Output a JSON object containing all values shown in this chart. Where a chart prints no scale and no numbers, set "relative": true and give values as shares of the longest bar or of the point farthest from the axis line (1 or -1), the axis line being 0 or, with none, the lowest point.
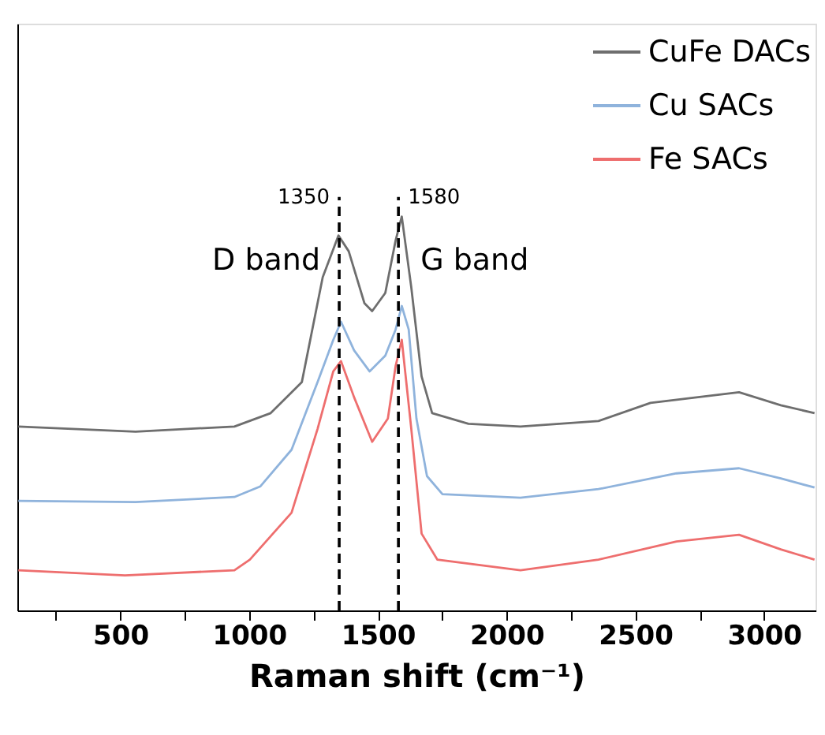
{
  "chart_data": {
    "type": "line",
    "relative": true,
    "xlabel": "Raman shift (cm⁻¹)",
    "xlim": [
      100,
      3200
    ],
    "xticks": [
      {
        "value": 250,
        "label": null
      },
      500,
      {
        "value": 750,
        "label": null
      },
      1000,
      {
        "value": 1250,
        "label": null
      },
      1500,
      {
        "value": 1750,
        "label": null
      },
      2000,
      {
        "value": 2250,
        "label": null
      },
      2500,
      {
        "value": 2750,
        "label": null
      },
      3000
    ],
    "tick_labels": "x",
    "grid": false,
    "legend": "top right",
    "line_style": "solid",
    "marker": "none",
    "series": [
      {
        "name": "CuFe DACs",
        "color": "#6e6e6e",
        "x": [
          104,
          559,
          943,
          1084,
          1205,
          1286,
          1347,
          1387,
          1448,
          1478,
          1529,
          1569,
          1593,
          1630,
          1670,
          1711,
          1852,
          2054,
          2357,
          2559,
          2903,
          3065,
          3196
        ],
        "values": [
          0.467,
          0.454,
          0.467,
          0.501,
          0.58,
          0.846,
          0.952,
          0.912,
          0.78,
          0.76,
          0.806,
          0.939,
          1,
          0.82,
          0.594,
          0.501,
          0.474,
          0.467,
          0.481,
          0.527,
          0.554,
          0.521,
          0.501
        ]
      },
      {
        "name": "Cu SACs",
        "color": "#8fb3dc",
        "x": [
          104,
          559,
          943,
          1044,
          1165,
          1266,
          1327,
          1357,
          1408,
          1468,
          1529,
          1569,
          1593,
          1620,
          1650,
          1691,
          1751,
          2054,
          2357,
          2660,
          2903,
          3065,
          3196
        ],
        "values": [
          0.278,
          0.275,
          0.288,
          0.315,
          0.408,
          0.58,
          0.687,
          0.733,
          0.66,
          0.607,
          0.647,
          0.713,
          0.773,
          0.713,
          0.487,
          0.341,
          0.295,
          0.286,
          0.308,
          0.348,
          0.361,
          0.335,
          0.312
        ]
      },
      {
        "name": "Fe SACs",
        "color": "#ee6e6e",
        "x": [
          104,
          518,
          943,
          1003,
          1165,
          1266,
          1327,
          1357,
          1408,
          1478,
          1539,
          1569,
          1593,
          1630,
          1670,
          1731,
          2054,
          2357,
          2660,
          2903,
          3065,
          3196
        ],
        "values": [
          0.102,
          0.089,
          0.102,
          0.129,
          0.248,
          0.461,
          0.607,
          0.633,
          0.541,
          0.428,
          0.487,
          0.62,
          0.687,
          0.461,
          0.195,
          0.129,
          0.102,
          0.129,
          0.175,
          0.192,
          0.155,
          0.129
        ]
      }
    ],
    "ref_lines": [
      {
        "axis": "x",
        "value": 1350,
        "label": "1350",
        "color": "#000000",
        "line_style": "dashed"
      },
      {
        "axis": "x",
        "value": 1580,
        "label": "1580",
        "color": "#000000",
        "line_style": "dashed"
      }
    ],
    "annotations": [
      "D band",
      "G band"
    ]
  }
}
